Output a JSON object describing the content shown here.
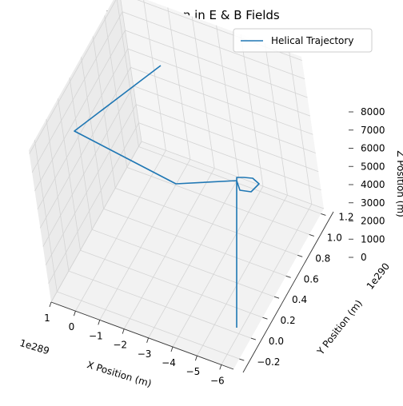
{
  "chart_data": {
    "type": "line",
    "projection": "3d",
    "title": "Helical Motion in E & B Fields",
    "xlabel": "X Position (m)",
    "ylabel": "Y Position (m)",
    "zlabel": "Z Position (m)",
    "x_offset_text": "1e289",
    "y_offset_text": "1e290",
    "x_ticks": [
      "−6",
      "−5",
      "−4",
      "−3",
      "−2",
      "−1",
      "0",
      "1"
    ],
    "y_ticks": [
      "−0.2",
      "0.0",
      "0.2",
      "0.4",
      "0.6",
      "0.8",
      "1.0",
      "1.2"
    ],
    "z_ticks": [
      "0",
      "1000",
      "2000",
      "3000",
      "4000",
      "5000",
      "6000",
      "7000",
      "8000"
    ],
    "xlim": [
      -6.5,
      1.0
    ],
    "ylim": [
      -0.3,
      1.25
    ],
    "zlim": [
      0,
      8200
    ],
    "grid": true,
    "legend_position": "top-right",
    "series": [
      {
        "name": "Helical Trajectory",
        "color": "#1f77b4",
        "x": [
          1.0,
          1.0,
          1.0,
          1.0,
          1.0,
          1.0,
          1.0,
          1.0,
          1.0,
          0.15,
          -5.2,
          -3.6
        ],
        "y": [
          0.0,
          0.0,
          0.0,
          0.0,
          0.002,
          0.0,
          -0.002,
          0.0,
          0.01,
          0.12,
          1.2,
          -0.25
        ],
        "z": [
          0,
          4600,
          4850,
          5000,
          4950,
          4700,
          4650,
          4900,
          5000,
          4500,
          7500,
          6100
        ]
      }
    ]
  }
}
